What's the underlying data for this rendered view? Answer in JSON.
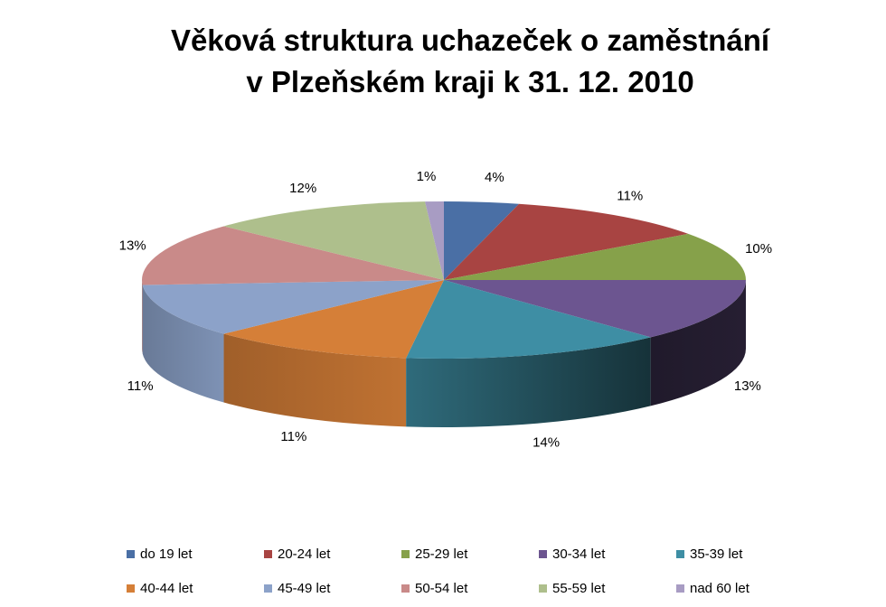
{
  "chart_data": {
    "type": "pie",
    "title_line1": "Věková struktura uchazeček o zaměstnání",
    "title_line2": "v Plzeňském kraji k 31. 12. 2010",
    "categories": [
      "do 19 let",
      "20-24 let",
      "25-29 let",
      "30-34 let",
      "35-39 let",
      "40-44 let",
      "45-49 let",
      "50-54 let",
      "55-59 let",
      "nad 60 let"
    ],
    "values": [
      4,
      11,
      10,
      13,
      14,
      11,
      11,
      13,
      12,
      1
    ],
    "labels": [
      "4%",
      "11%",
      "10%",
      "13%",
      "14%",
      "11%",
      "11%",
      "13%",
      "12%",
      "1%"
    ],
    "colors": [
      "#4a6fa5",
      "#a84442",
      "#86a14a",
      "#6c5590",
      "#3e8ea4",
      "#d57f38",
      "#8ca2c9",
      "#c98a89",
      "#aebf8c",
      "#a89cc3"
    ],
    "legend_position": "bottom",
    "style": "3d"
  }
}
